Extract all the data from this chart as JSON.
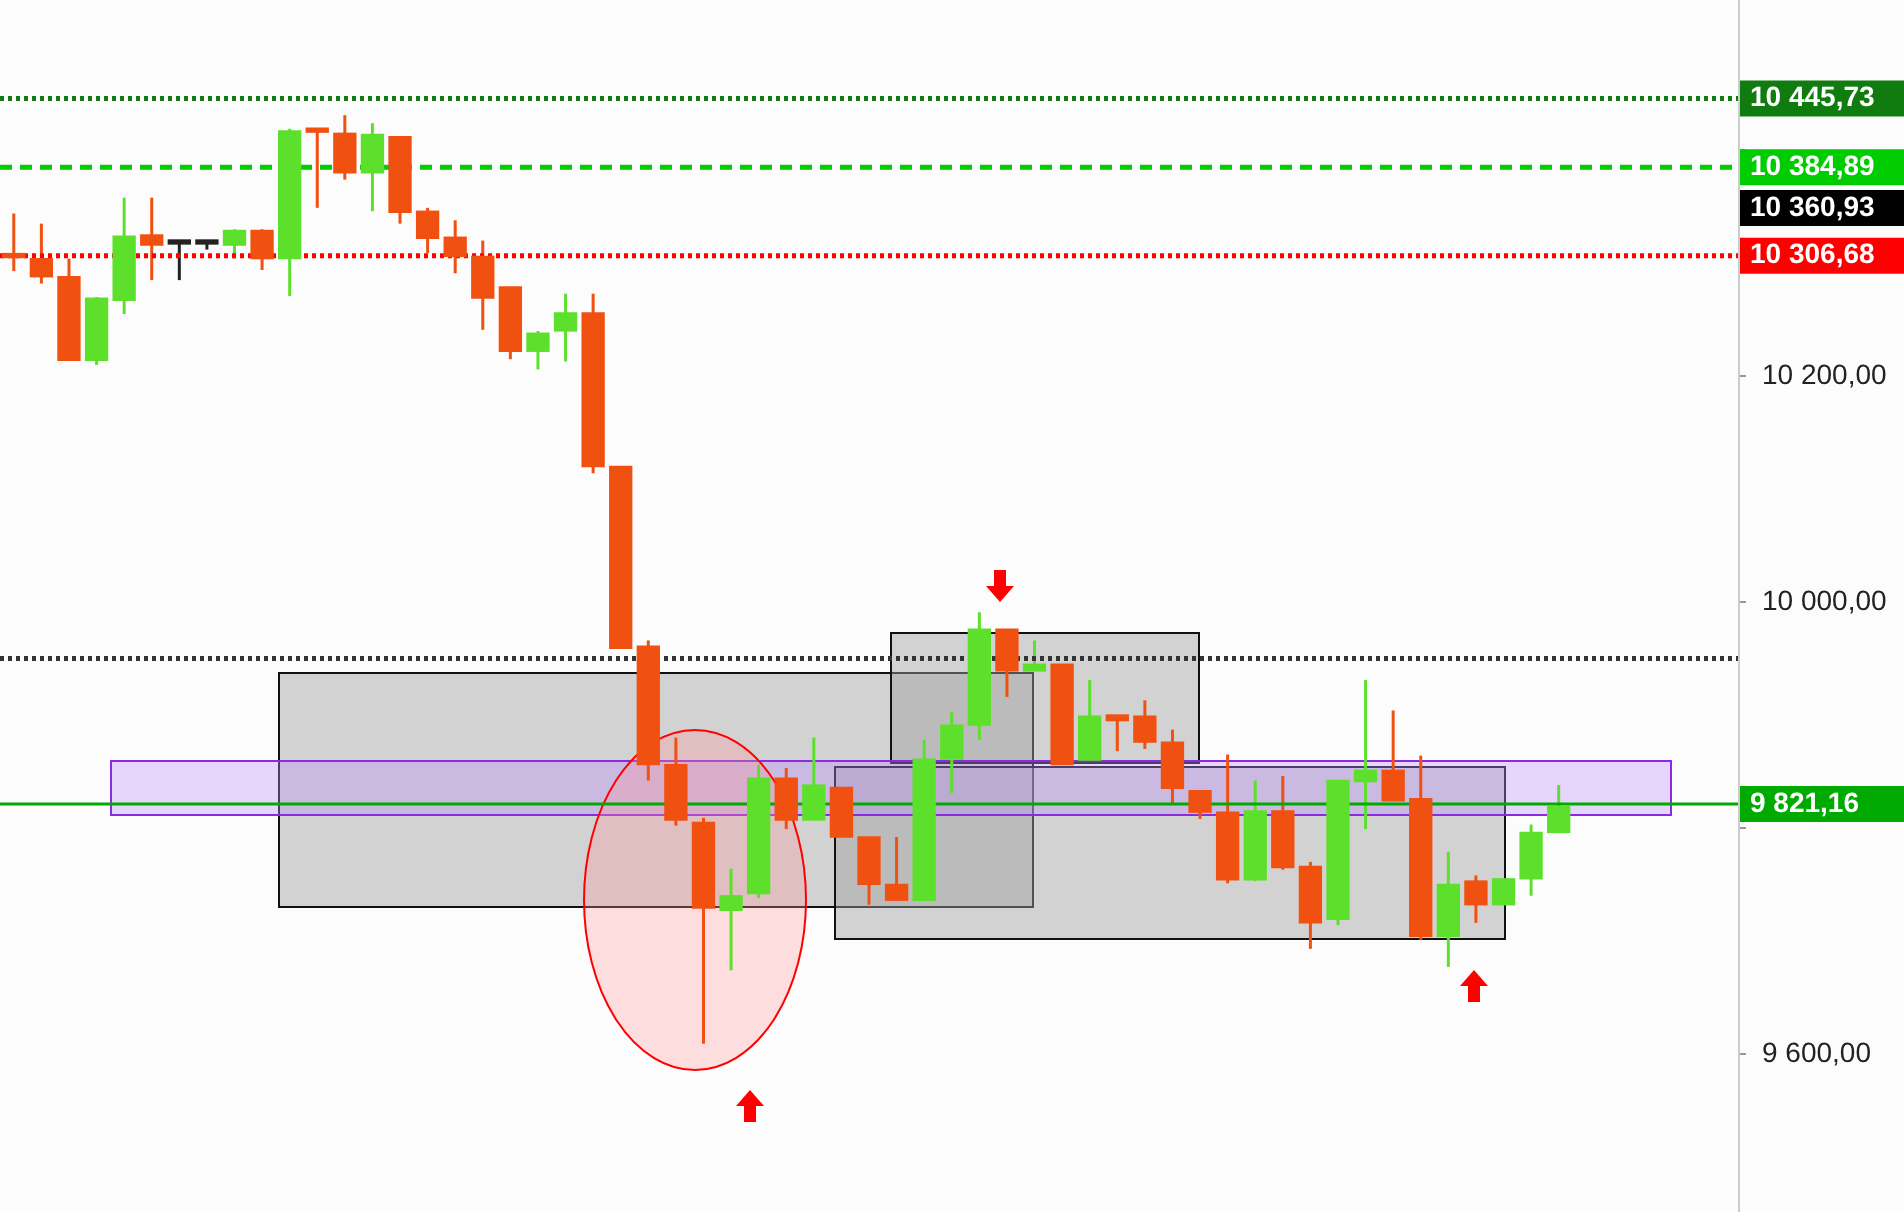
{
  "chart_data": {
    "type": "candlestick",
    "categories": [
      null,
      null,
      null,
      null,
      null,
      null,
      null,
      null,
      null,
      null,
      null,
      null,
      null,
      null,
      null,
      null,
      null,
      null,
      null,
      null,
      null,
      null,
      null,
      null,
      null,
      null,
      null,
      null,
      null,
      null,
      null,
      null,
      null,
      null,
      null,
      null,
      null,
      null,
      null,
      null,
      null,
      null,
      null,
      null,
      null,
      null,
      null,
      null,
      null,
      null,
      null,
      null,
      null,
      null,
      null,
      null,
      null,
      null,
      null,
      null,
      null,
      null,
      null
    ],
    "ohlc": [
      [
        10305,
        10344,
        10293,
        10305
      ],
      [
        10304,
        10335,
        10282,
        10288
      ],
      [
        10288,
        10304,
        10214,
        10214
      ],
      [
        10214,
        10270,
        10210,
        10269
      ],
      [
        10267,
        10358,
        10255,
        10324
      ],
      [
        10325,
        10358,
        10285,
        10316
      ],
      [
        10317,
        10320,
        10285,
        10317
      ],
      [
        10317,
        10320,
        10312,
        10317
      ],
      [
        10316,
        10330,
        10304,
        10329
      ],
      [
        10329,
        10330,
        10294,
        10304
      ],
      [
        10304,
        10419,
        10271,
        10417
      ],
      [
        10418,
        10418,
        10349,
        10416
      ],
      [
        10415,
        10431,
        10374,
        10380
      ],
      [
        10380,
        10424,
        10346,
        10414
      ],
      [
        10412,
        10412,
        10335,
        10345
      ],
      [
        10346,
        10349,
        10309,
        10322
      ],
      [
        10323,
        10338,
        10291,
        10306
      ],
      [
        10306,
        10320,
        10241,
        10269
      ],
      [
        10279,
        10279,
        10215,
        10222
      ],
      [
        10222,
        10240,
        10206,
        10238
      ],
      [
        10240,
        10273,
        10213,
        10256
      ],
      [
        10256,
        10273,
        10114,
        10120
      ],
      [
        10120,
        10120,
        9959,
        9959
      ],
      [
        9961,
        9966,
        9842,
        9856
      ],
      [
        9856,
        9880,
        9802,
        9807
      ],
      [
        9805,
        9809,
        9609,
        9729
      ],
      [
        9727,
        9764,
        9674,
        9740
      ],
      [
        9742,
        9856,
        9738,
        9844
      ],
      [
        9844,
        9853,
        9799,
        9807
      ],
      [
        9807,
        9880,
        9807,
        9838
      ],
      [
        9836,
        9836,
        9792,
        9792
      ],
      [
        9792,
        9792,
        9732,
        9750
      ],
      [
        9750,
        9792,
        9736,
        9736
      ],
      [
        9736,
        9878,
        9736,
        9861
      ],
      [
        9861,
        9903,
        9831,
        9891
      ],
      [
        9891,
        9991,
        9878,
        9976
      ],
      [
        9976,
        9976,
        9916,
        9939
      ],
      [
        9939,
        9966,
        9939,
        9945
      ],
      [
        9945,
        9945,
        9856,
        9856
      ],
      [
        9860,
        9931,
        9860,
        9899
      ],
      [
        9900,
        9900,
        9868,
        9895
      ],
      [
        9899,
        9913,
        9870,
        9876
      ],
      [
        9876,
        9887,
        9821,
        9835
      ],
      [
        9833,
        9833,
        9808,
        9814
      ],
      [
        9814,
        9865,
        9751,
        9754
      ],
      [
        9754,
        9842,
        9753,
        9815
      ],
      [
        9815,
        9846,
        9763,
        9765
      ],
      [
        9766,
        9770,
        9693,
        9716
      ],
      [
        9719,
        9842,
        9714,
        9842
      ],
      [
        9841,
        9931,
        9799,
        9851
      ],
      [
        9851,
        9904,
        9824,
        9824
      ],
      [
        9826,
        9864,
        9701,
        9704
      ],
      [
        9704,
        9779,
        9677,
        9750
      ],
      [
        9753,
        9758,
        9716,
        9732
      ],
      [
        9732,
        9755,
        9732,
        9755
      ],
      [
        9755,
        9803,
        9740,
        9796
      ],
      [
        9796,
        9838,
        9796,
        9819
      ],
      null,
      null,
      null,
      null,
      null,
      null
    ],
    "colors": [
      "#f05010",
      "#f05010",
      "#f05010",
      "#5de02c",
      "#5de02c",
      "#f05010",
      "#222222",
      "#222222",
      "#5de02c",
      "#f05010",
      "#5de02c",
      "#f05010",
      "#f05010",
      "#5de02c",
      "#f05010",
      "#f05010",
      "#f05010",
      "#f05010",
      "#f05010",
      "#5de02c",
      "#5de02c",
      "#f05010",
      "#f05010",
      "#f05010",
      "#f05010",
      "#f05010",
      "#5de02c",
      "#5de02c",
      "#f05010",
      "#5de02c",
      "#f05010",
      "#f05010",
      "#f05010",
      "#5de02c",
      "#5de02c",
      "#5de02c",
      "#f05010",
      "#5de02c",
      "#f05010",
      "#5de02c",
      "#f05010",
      "#f05010",
      "#f05010",
      "#f05010",
      "#f05010",
      "#5de02c",
      "#f05010",
      "#f05010",
      "#5de02c",
      "#5de02c",
      "#f05010",
      "#f05010",
      "#5de02c",
      "#f05010",
      "#5de02c",
      "#5de02c",
      "#5de02c",
      null,
      null,
      null,
      null,
      null,
      null
    ],
    "ylim": [
      9460,
      10533
    ],
    "yticks": [
      {
        "value": 9600,
        "label": "9 600,00"
      },
      {
        "value": 9800,
        "label": null
      },
      {
        "value": 10000,
        "label": "10 000,00"
      },
      {
        "value": 10200,
        "label": "10 200,00"
      },
      {
        "value": 10400,
        "label": null
      }
    ],
    "annotations": [
      "10 360,93"
    ],
    "ref_lines": [
      {
        "axis": "y",
        "value": 10445.73,
        "label": "10 445,73",
        "color": "#107c10",
        "line_style": "dotted"
      },
      {
        "axis": "y",
        "value": 10384.89,
        "label": "10 384,89",
        "color": "#00cc00",
        "line_style": "dashed"
      },
      {
        "axis": "y",
        "value": 10306.68,
        "label": "10 306,68",
        "color": "#ff0000",
        "line_style": "dotted"
      },
      {
        "axis": "y",
        "value": 9950,
        "label": null,
        "color": "#333333",
        "line_style": "dotted"
      },
      {
        "axis": "y",
        "value": 9821.16,
        "label": "9 821,16",
        "color": "#00aa00",
        "line_style": "solid"
      }
    ],
    "grid": false,
    "legend": false,
    "tick_labels": "y"
  }
}
